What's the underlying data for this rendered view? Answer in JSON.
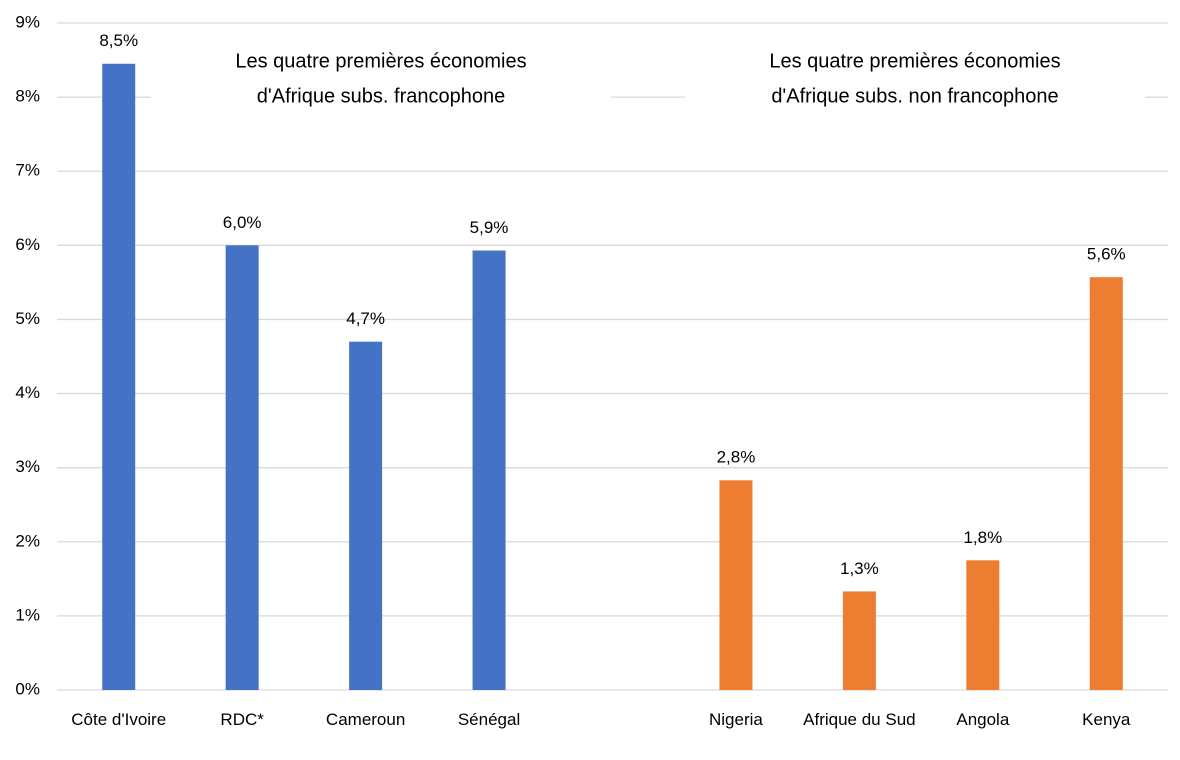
{
  "chart_data": {
    "type": "bar",
    "categories": [
      "Côte d'Ivoire",
      "RDC*",
      "Cameroun",
      "Sénégal",
      null,
      "Nigeria",
      "Afrique du Sud",
      "Angola",
      "Kenya"
    ],
    "values": [
      8.45,
      6.0,
      4.7,
      5.93,
      null,
      2.83,
      1.33,
      1.75,
      5.57
    ],
    "value_labels": [
      "8,5%",
      "6,0%",
      "4,7%",
      "5,9%",
      null,
      "2,8%",
      "1,3%",
      "1,8%",
      "5,6%"
    ],
    "colors": [
      "#4472c4",
      "#4472c4",
      "#4472c4",
      "#4472c4",
      null,
      "#ed7d31",
      "#ed7d31",
      "#ed7d31",
      "#ed7d31"
    ],
    "ylim": [
      0,
      9
    ],
    "yticks": [
      {
        "value": 0,
        "label": "0%"
      },
      {
        "value": 1,
        "label": "1%"
      },
      {
        "value": 2,
        "label": "2%"
      },
      {
        "value": 3,
        "label": "3%"
      },
      {
        "value": 4,
        "label": "4%"
      },
      {
        "value": 5,
        "label": "5%"
      },
      {
        "value": 6,
        "label": "6%"
      },
      {
        "value": 7,
        "label": "7%"
      },
      {
        "value": 8,
        "label": "8%"
      },
      {
        "value": 9,
        "label": "9%"
      }
    ],
    "grid": true,
    "annotations": [
      [
        "Les quatre premières économies",
        "d'Afrique subs.  francophone"
      ],
      [
        "Les quatre premières économies",
        "d'Afrique subs. non francophone"
      ]
    ]
  }
}
